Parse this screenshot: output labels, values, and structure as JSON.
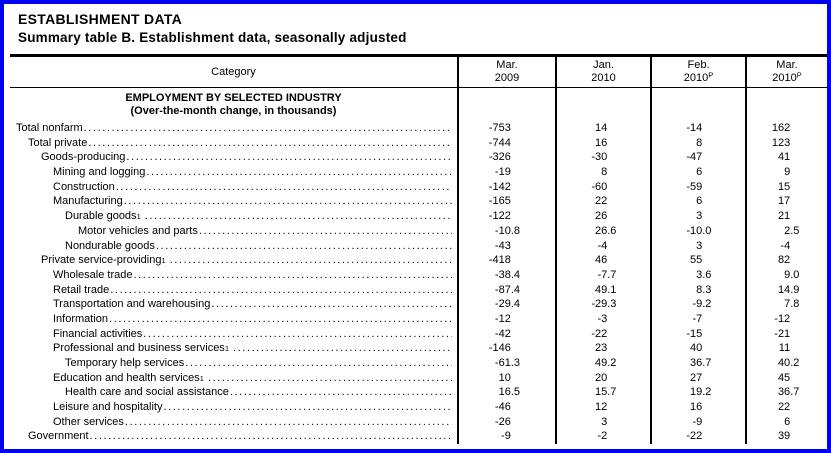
{
  "page": {
    "title": "ESTABLISHMENT DATA",
    "subtitle": "Summary table B. Establishment data, seasonally adjusted",
    "border_color": "#0000F2"
  },
  "table": {
    "category_header": "Category",
    "columns": [
      {
        "line1": "Mar.",
        "line2": "2009",
        "sup": ""
      },
      {
        "line1": "Jan.",
        "line2": "2010",
        "sup": ""
      },
      {
        "line1": "Feb.",
        "line2": "2010",
        "sup": "P"
      },
      {
        "line1": "Mar.",
        "line2": "2010",
        "sup": "P"
      }
    ],
    "section_header": {
      "line1": "EMPLOYMENT BY SELECTED INDUSTRY",
      "line2": "(Over-the-month change, in thousands)"
    },
    "rows": [
      {
        "label": "Total nonfarm",
        "footnote": "",
        "indent": 0,
        "values": [
          "-753",
          "14",
          "-14",
          "162"
        ]
      },
      {
        "label": "Total private",
        "footnote": "",
        "indent": 1,
        "values": [
          "-744",
          "16",
          "8",
          "123"
        ]
      },
      {
        "label": "Goods-producing",
        "footnote": "",
        "indent": 2,
        "values": [
          "-326",
          "-30",
          "-47",
          "41"
        ]
      },
      {
        "label": "Mining and logging",
        "footnote": "",
        "indent": 3,
        "values": [
          "-19",
          "8",
          "6",
          "9"
        ]
      },
      {
        "label": "Construction",
        "footnote": "",
        "indent": 3,
        "values": [
          "-142",
          "-60",
          "-59",
          "15"
        ]
      },
      {
        "label": "Manufacturing",
        "footnote": "",
        "indent": 3,
        "values": [
          "-165",
          "22",
          "6",
          "17"
        ]
      },
      {
        "label": "Durable goods",
        "footnote": "1",
        "indent": 4,
        "values": [
          "-122",
          "26",
          "3",
          "21"
        ]
      },
      {
        "label": "Motor vehicles and parts",
        "footnote": "",
        "indent": 5,
        "values": [
          "-10.8",
          "26.6",
          "-10.0",
          "2.5"
        ]
      },
      {
        "label": "Nondurable goods",
        "footnote": "",
        "indent": 4,
        "values": [
          "-43",
          "-4",
          "3",
          "-4"
        ]
      },
      {
        "label": "Private service-providing",
        "footnote": "1",
        "indent": 2,
        "values": [
          "-418",
          "46",
          "55",
          "82"
        ]
      },
      {
        "label": "Wholesale trade",
        "footnote": "",
        "indent": 3,
        "values": [
          "-38.4",
          "-7.7",
          "3.6",
          "9.0"
        ]
      },
      {
        "label": "Retail trade",
        "footnote": "",
        "indent": 3,
        "values": [
          "-87.4",
          "49.1",
          "8.3",
          "14.9"
        ]
      },
      {
        "label": "Transportation and warehousing",
        "footnote": "",
        "indent": 3,
        "values": [
          "-29.4",
          "-29.3",
          "-9.2",
          "7.8"
        ]
      },
      {
        "label": "Information",
        "footnote": "",
        "indent": 3,
        "values": [
          "-12",
          "-3",
          "-7",
          "-12"
        ]
      },
      {
        "label": "Financial activities",
        "footnote": "",
        "indent": 3,
        "values": [
          "-42",
          "-22",
          "-15",
          "-21"
        ]
      },
      {
        "label": "Professional and business services",
        "footnote": "1",
        "indent": 3,
        "values": [
          "-146",
          "23",
          "40",
          "11"
        ]
      },
      {
        "label": "Temporary help services",
        "footnote": "",
        "indent": 4,
        "values": [
          "-61.3",
          "49.2",
          "36.7",
          "40.2"
        ]
      },
      {
        "label": "Education and health services",
        "footnote": "1",
        "indent": 3,
        "values": [
          "10",
          "20",
          "27",
          "45"
        ]
      },
      {
        "label": "Health care and social assistance",
        "footnote": "",
        "indent": 4,
        "values": [
          "16.5",
          "15.7",
          "19.2",
          "36.7"
        ]
      },
      {
        "label": "Leisure and hospitality",
        "footnote": "",
        "indent": 3,
        "values": [
          "-46",
          "12",
          "16",
          "22"
        ]
      },
      {
        "label": "Other services",
        "footnote": "",
        "indent": 3,
        "values": [
          "-26",
          "3",
          "-9",
          "6"
        ]
      },
      {
        "label": "Government",
        "footnote": "",
        "indent": 1,
        "values": [
          "-9",
          "-2",
          "-22",
          "39"
        ]
      }
    ]
  }
}
